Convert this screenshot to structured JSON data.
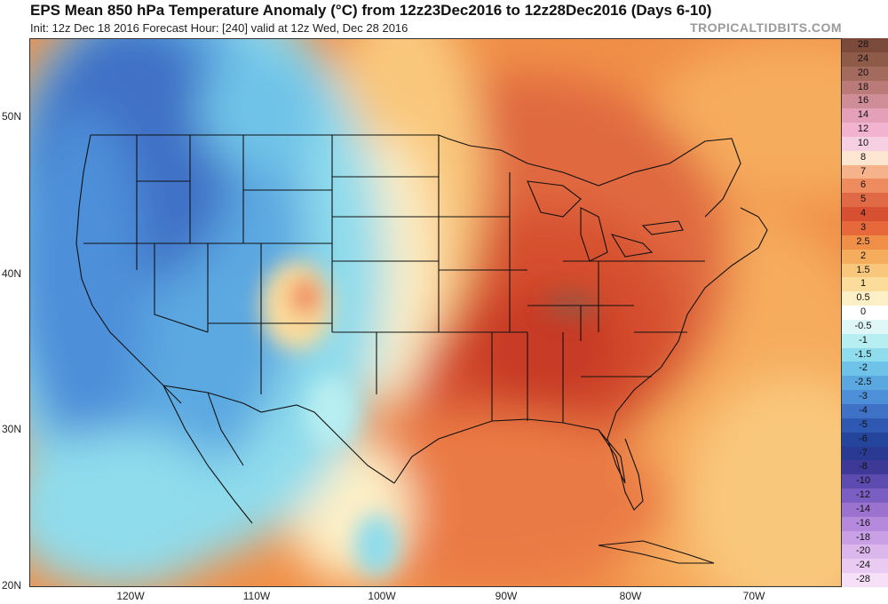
{
  "header": {
    "title": "EPS Mean 850 hPa Temperature Anomaly (°C) from 12z23Dec2016 to 12z28Dec2016 (Days 6-10)",
    "subtitle": "Init: 12z Dec 18 2016   Forecast Hour: [240]   valid at 12z Wed, Dec 28 2016",
    "brand": "TROPICALTIDBITS.COM"
  },
  "map": {
    "lat_labels": [
      "50N",
      "40N",
      "30N",
      "20N"
    ],
    "lon_labels": [
      "120W",
      "110W",
      "100W",
      "90W",
      "80W",
      "70W"
    ],
    "regions": [
      {
        "name": "pacific-northwest",
        "anomaly": -4
      },
      {
        "name": "northern-rockies",
        "anomaly": -3
      },
      {
        "name": "great-basin",
        "anomaly": -2.5
      },
      {
        "name": "four-corners",
        "anomaly": 1
      },
      {
        "name": "west-texas",
        "anomaly": -0.5
      },
      {
        "name": "northern-plains",
        "anomaly": 0.5
      },
      {
        "name": "southern-plains",
        "anomaly": 3
      },
      {
        "name": "great-lakes",
        "anomaly": 5
      },
      {
        "name": "ohio-valley",
        "anomaly": 6
      },
      {
        "name": "deep-south",
        "anomaly": 6
      },
      {
        "name": "northeast",
        "anomaly": 4
      },
      {
        "name": "gulf-of-mexico",
        "anomaly": 3
      },
      {
        "name": "western-atlantic",
        "anomaly": 2.5
      }
    ]
  },
  "legend": {
    "levels": [
      "28",
      "24",
      "20",
      "18",
      "16",
      "14",
      "12",
      "10",
      "8",
      "7",
      "6",
      "5",
      "4",
      "3",
      "2.5",
      "2",
      "1.5",
      "1",
      "0.5",
      "0",
      "-0.5",
      "-1",
      "-1.5",
      "-2",
      "-2.5",
      "-3",
      "-4",
      "-5",
      "-6",
      "-7",
      "-8",
      "-10",
      "-12",
      "-14",
      "-16",
      "-18",
      "-20",
      "-24",
      "-28"
    ],
    "colors": [
      "#7b4a3a",
      "#8e5b49",
      "#a36a5e",
      "#b97a78",
      "#cf8d97",
      "#e4a0b9",
      "#f2b3d1",
      "#f6d0e2",
      "#fce6d2",
      "#f6b28a",
      "#ef8c5f",
      "#e06a45",
      "#d65031",
      "#e7683a",
      "#f08f48",
      "#f6ac5d",
      "#f9c77b",
      "#fbdc9b",
      "#fdefc6",
      "#ffffff",
      "#dff7f6",
      "#b7eef1",
      "#8fdcec",
      "#6fc3e8",
      "#5ba8e1",
      "#4e8fd9",
      "#3f71c6",
      "#2f58b3",
      "#25459c",
      "#2a3a92",
      "#3c3a96",
      "#5d4bb0",
      "#7b5ec2",
      "#9b73cf",
      "#b58adc",
      "#c9a0e5",
      "#dbb7ec",
      "#e9cbf1",
      "#f5e0f7"
    ]
  }
}
